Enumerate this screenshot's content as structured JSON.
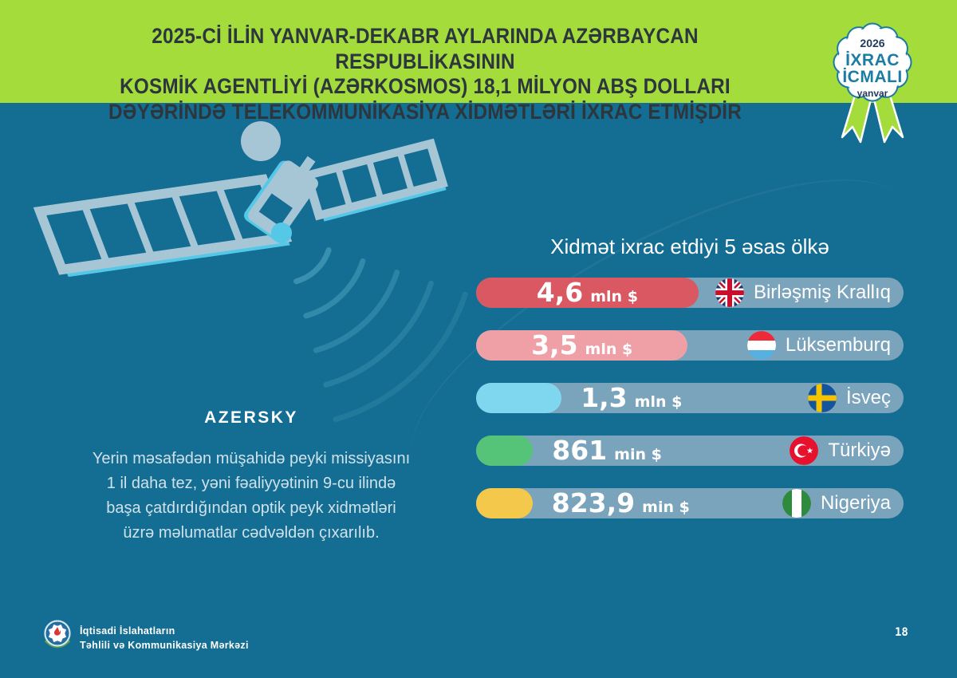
{
  "header": {
    "title_lines": [
      "2025-Cİ İLİN YANVAR-DEKABR AYLARINDA AZƏRBAYCAN RESPUBLİKASININ",
      "KOSMİK AGENTLİYİ (AZƏRKOSMOS) 18,1 MİLYON ABŞ DOLLARI",
      "DƏYƏRİNDƏ TELEKOMMUNİKASİYA XİDMƏTLƏRİ İXRAC ETMİŞDİR"
    ],
    "badge": {
      "year": "2026",
      "line1": "İXRAC",
      "line2": "İCMALI",
      "month": "yanvar"
    }
  },
  "satellite": {
    "label": "AZERSKY"
  },
  "note_lines": [
    "Yerin məsafədən müşahidə peyki missiyasını",
    "1 il daha tez, yəni fəaliyyətinin 9-cu ilində",
    "başa çatdırdığından optik peyk xidmətləri",
    "üzrə məlumatlar cədvəldən çıxarılıb."
  ],
  "chart": {
    "title": "Xidmət ixrac etdiyi 5 əsas ölkə",
    "bars": [
      {
        "value": "4,6",
        "unit": "mln $",
        "country": "Birləşmiş Krallıq",
        "flag": "united-kingdom",
        "color": "#d95862",
        "fill_pct": 52,
        "value_inside": true
      },
      {
        "value": "3,5",
        "unit": "mln $",
        "country": "Lüksemburq",
        "flag": "luxembourg",
        "color": "#efa0a7",
        "fill_pct": 49.5,
        "value_inside": true
      },
      {
        "value": "1,3",
        "unit": "mln $",
        "country": "İsveç",
        "flag": "sweden",
        "color": "#7ed7ef",
        "fill_pct": 20,
        "value_inside": false
      },
      {
        "value": "861",
        "unit": "min $",
        "country": "Türkiyə",
        "flag": "turkey",
        "color": "#55c478",
        "fill_pct": 13.3,
        "value_inside": false
      },
      {
        "value": "823,9",
        "unit": "min $",
        "country": "Nigeriya",
        "flag": "nigeria",
        "color": "#f3c84b",
        "fill_pct": 13.2,
        "value_inside": false
      }
    ]
  },
  "chart_data": {
    "type": "bar",
    "orientation": "horizontal",
    "title": "Xidmət ixrac etdiyi 5 əsas ölkə",
    "categories": [
      "Birləşmiş Krallıq",
      "Lüksemburq",
      "İsveç",
      "Türkiyə",
      "Nigeriya"
    ],
    "values": [
      4.6,
      3.5,
      1.3,
      0.861,
      0.8239
    ],
    "value_labels": [
      "4,6 mln $",
      "3,5 mln $",
      "1,3 mln $",
      "861 min $",
      "823,9 min $"
    ],
    "unit": "mln USD",
    "bar_colors": [
      "#d95862",
      "#efa0a7",
      "#7ed7ef",
      "#55c478",
      "#f3c84b"
    ],
    "legend": null,
    "grid": false
  },
  "footer": {
    "org_line1": "İqtisadi İslahatların",
    "org_line2": "Təhlili və Kommunikasiya Mərkəzi",
    "page": "18"
  },
  "colors": {
    "bg": "#146d92",
    "green": "#a4dc3c",
    "dark": "#2d363c",
    "track": "#7aa3bc",
    "soft": "#cfe2ec",
    "badge_teal": "#1a7ca3",
    "badge_navy": "#223a5e",
    "sat_light": "#a6c6d6",
    "sat_cyan": "#55c8e8",
    "arc": "#57acc8"
  }
}
